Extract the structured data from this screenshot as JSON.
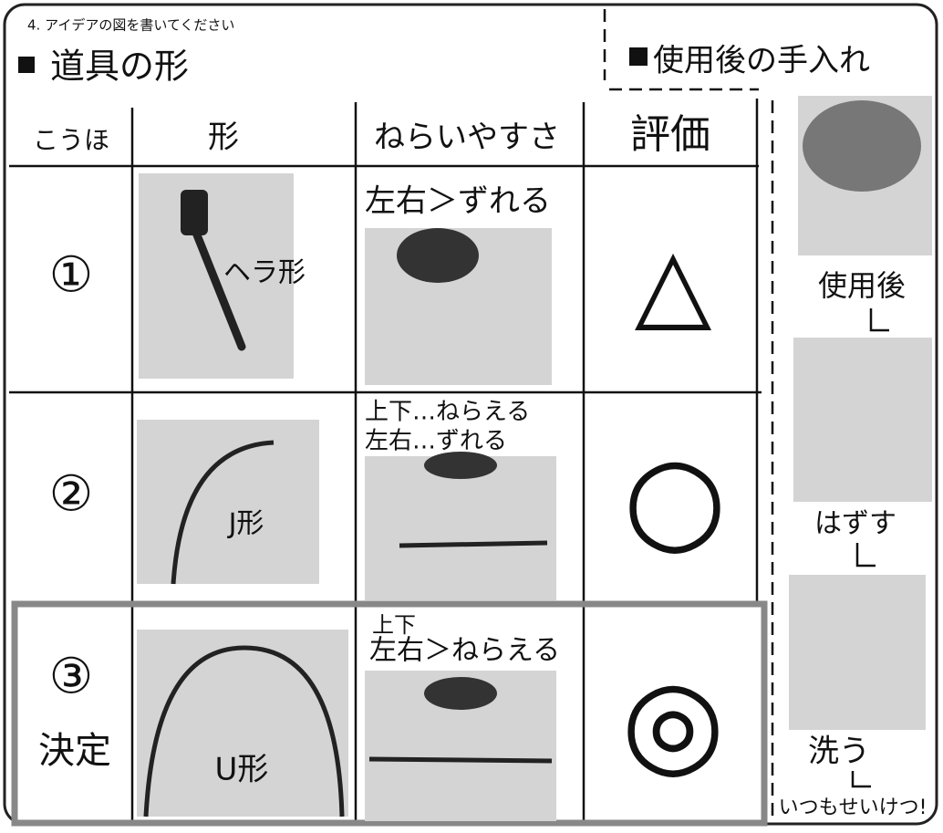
{
  "header": {
    "instruction": "4. アイデアの図を書いてください",
    "left_title": "道具の形",
    "right_title": "使用後の手入れ"
  },
  "table": {
    "columns": [
      "こうほ",
      "形",
      "ねらいやすさ",
      "評価"
    ],
    "rows": [
      {
        "candidate": "①",
        "shape": "ヘラ形",
        "aim": [
          "左右＞ずれる"
        ],
        "rating": "△"
      },
      {
        "candidate": "②",
        "shape": "J形",
        "aim": [
          "上下…ねらえる",
          "左右…ずれる"
        ],
        "rating": "○"
      },
      {
        "candidate": "③",
        "decision": "決定",
        "shape": "U形",
        "aim": [
          "上下",
          "左右＞ねらえる"
        ],
        "rating": "◎"
      }
    ]
  },
  "care": {
    "steps": [
      "使用後",
      "はずす",
      "洗う",
      "いつもせいけつ!"
    ]
  }
}
